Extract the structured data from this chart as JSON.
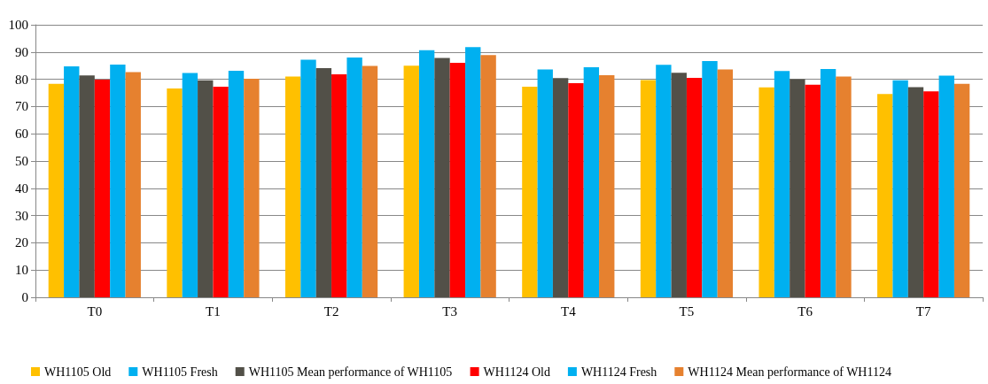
{
  "chart_data": {
    "type": "bar",
    "categories": [
      "T0",
      "T1",
      "T2",
      "T3",
      "T4",
      "T5",
      "T6",
      "T7"
    ],
    "series": [
      {
        "name": "WH1105 Old",
        "color": "#ffc000",
        "values": [
          78.3,
          76.6,
          81.0,
          85.0,
          77.3,
          79.7,
          77.0,
          74.6
        ]
      },
      {
        "name": "WH1105 Fresh",
        "color": "#00b0f0",
        "values": [
          84.7,
          82.3,
          87.2,
          90.7,
          83.6,
          85.3,
          83.0,
          79.6
        ]
      },
      {
        "name": "WH1105 Mean performance of WH1105",
        "color": "#525048",
        "values": [
          81.4,
          79.6,
          84.1,
          87.8,
          80.4,
          82.4,
          80.0,
          77.1
        ]
      },
      {
        "name": "WH1124 Old",
        "color": "#ff0000",
        "values": [
          79.9,
          77.3,
          81.8,
          86.0,
          78.6,
          80.5,
          78.0,
          75.6
        ]
      },
      {
        "name": "WH1124 Fresh",
        "color": "#00b0f0",
        "values": [
          85.4,
          83.1,
          88.0,
          91.8,
          84.4,
          86.7,
          83.8,
          81.3
        ]
      },
      {
        "name": "WH1124 Mean performance of WH1124",
        "color": "#e6812f",
        "values": [
          82.6,
          80.2,
          84.9,
          88.9,
          81.5,
          83.6,
          81.0,
          78.3
        ]
      }
    ],
    "ylim": [
      0,
      100
    ],
    "yticks": [
      0,
      10,
      20,
      30,
      40,
      50,
      60,
      70,
      80,
      90,
      100
    ],
    "grid": "y",
    "legend": "bottom"
  }
}
